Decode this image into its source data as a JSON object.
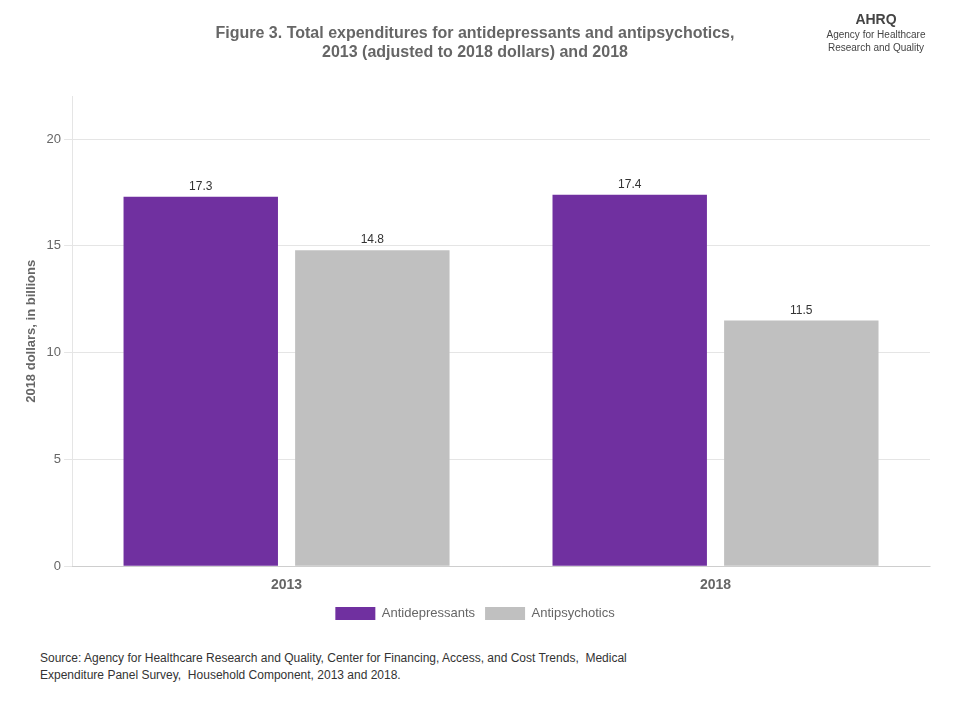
{
  "chart_data": {
    "type": "bar",
    "title": [
      "Figure 3. Total expenditures for antidepressants and antipsychotics,",
      "2013 (adjusted to 2018 dollars) and 2018"
    ],
    "ylabel": "2018 dollars, in billions",
    "categories": [
      "2013",
      "2018"
    ],
    "series": [
      {
        "name": "Antidepressants",
        "color": "#7030A0",
        "values": [
          17.3,
          17.4
        ]
      },
      {
        "name": "Antipsychotics",
        "color": "#C0C0C0",
        "values": [
          14.8,
          11.5
        ]
      }
    ],
    "ylim": [
      0,
      22
    ],
    "yticks": [
      0,
      5,
      10,
      15,
      20
    ],
    "grid": true,
    "legend": "bottom",
    "data_labels": true,
    "annotations": [
      "AHRQ",
      "Agency for Healthcare",
      "Research and Quality",
      "Source: Agency for Healthcare Research and Quality, Center for Financing, Access, and Cost Trends,  Medical\nExpenditure Panel Survey,  Household Component, 2013 and 2018."
    ]
  }
}
